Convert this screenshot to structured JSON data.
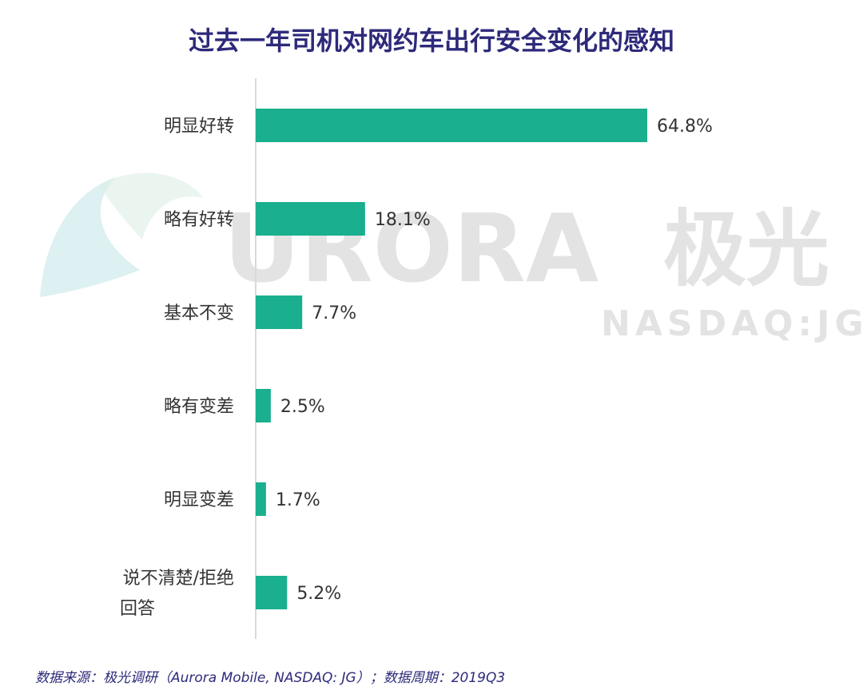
{
  "title": "过去一年司机对网约车出行安全变化的感知",
  "source": "数据来源：极光调研（Aurora Mobile, NASDAQ: JG）；数据周期：2019Q3",
  "watermark": {
    "brand": "URORA",
    "brand_cn": "极光",
    "ticker": "NASDAQ:JG"
  },
  "colors": {
    "bar": "#1aaf8e",
    "title": "#2d2a7a",
    "axis": "#d9d9d9",
    "label": "#333333",
    "watermark": "#e0e0e0",
    "logo": "#cfe9ec"
  },
  "chart_data": {
    "type": "bar",
    "orientation": "horizontal",
    "categories": [
      "明显好转",
      "略有好转",
      "基本不变",
      "略有变差",
      "明显变差",
      "说不清楚/拒绝回答"
    ],
    "values": [
      64.8,
      18.1,
      7.7,
      2.5,
      1.7,
      5.2
    ],
    "value_labels": [
      "64.8%",
      "18.1%",
      "7.7%",
      "2.5%",
      "1.7%",
      "5.2%"
    ],
    "category_lines": [
      [
        "明显好转"
      ],
      [
        "略有好转"
      ],
      [
        "基本不变"
      ],
      [
        "略有变差"
      ],
      [
        "明显变差"
      ],
      [
        "说不清楚/拒绝",
        "回答"
      ]
    ],
    "unit": "%",
    "xlim": [
      0,
      64.8
    ],
    "grid": false,
    "legend": "none"
  }
}
